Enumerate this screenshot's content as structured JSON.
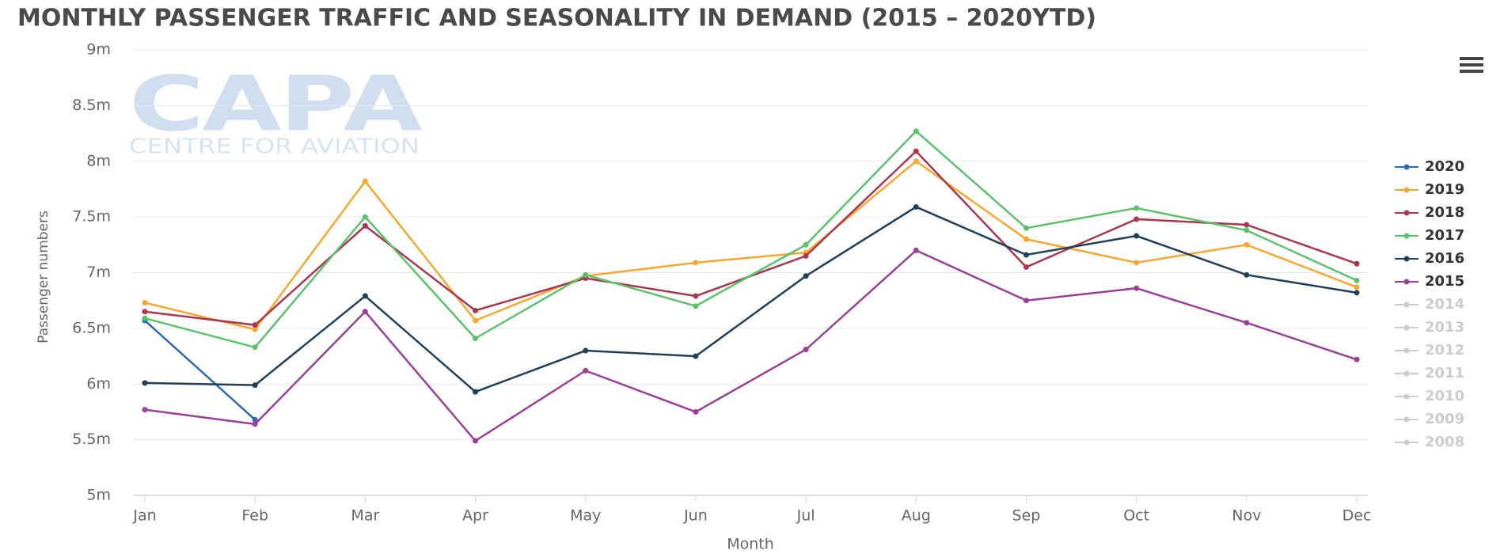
{
  "chart_data": {
    "type": "line",
    "title": "MONTHLY PASSENGER TRAFFIC AND SEASONALITY IN DEMAND (2015 – 2020YTD)",
    "watermark": {
      "logo": "CAPA",
      "subtitle": "CENTRE FOR AVIATION"
    },
    "x_label": "Month",
    "y_label": "Passenger numbers",
    "categories": [
      "Jan",
      "Feb",
      "Mar",
      "Apr",
      "May",
      "Jun",
      "Jul",
      "Aug",
      "Sep",
      "Oct",
      "Nov",
      "Dec"
    ],
    "ylim": [
      5,
      9
    ],
    "yticks": [
      {
        "value": 5,
        "label": "5m"
      },
      {
        "value": 5.5,
        "label": "5.5m"
      },
      {
        "value": 6,
        "label": "6m"
      },
      {
        "value": 6.5,
        "label": "6.5m"
      },
      {
        "value": 7,
        "label": "7m"
      },
      {
        "value": 7.5,
        "label": "7.5m"
      },
      {
        "value": 8,
        "label": "8m"
      },
      {
        "value": 8.5,
        "label": "8.5m"
      },
      {
        "value": 9,
        "label": "9m"
      }
    ],
    "grid": true,
    "legend": "right",
    "series": [
      {
        "name": "2020",
        "color": "#2a6ab8",
        "visible": true,
        "values": [
          6.57,
          5.68,
          null,
          null,
          null,
          null,
          null,
          null,
          null,
          null,
          null,
          null
        ]
      },
      {
        "name": "2019",
        "color": "#f7a731",
        "visible": true,
        "values": [
          6.73,
          6.49,
          7.82,
          6.57,
          6.97,
          7.09,
          7.18,
          8.0,
          7.3,
          7.09,
          7.25,
          6.87
        ]
      },
      {
        "name": "2018",
        "color": "#a8374f",
        "visible": true,
        "values": [
          6.65,
          6.53,
          7.42,
          6.66,
          6.95,
          6.79,
          7.15,
          8.09,
          7.05,
          7.48,
          7.43,
          7.08
        ]
      },
      {
        "name": "2017",
        "color": "#5cc26a",
        "visible": true,
        "values": [
          6.59,
          6.33,
          7.5,
          6.41,
          6.98,
          6.7,
          7.25,
          8.27,
          7.4,
          7.58,
          7.38,
          6.93
        ]
      },
      {
        "name": "2016",
        "color": "#1f3f5a",
        "visible": true,
        "values": [
          6.01,
          5.99,
          6.79,
          5.93,
          6.3,
          6.25,
          6.97,
          7.59,
          7.16,
          7.33,
          6.98,
          6.82
        ]
      },
      {
        "name": "2015",
        "color": "#9a3f98",
        "visible": true,
        "values": [
          5.77,
          5.64,
          6.65,
          5.49,
          6.12,
          5.75,
          6.31,
          7.2,
          6.75,
          6.86,
          6.55,
          6.22
        ]
      },
      {
        "name": "2014",
        "color": "#cccccc",
        "visible": false,
        "values": [
          null,
          null,
          null,
          null,
          null,
          null,
          null,
          null,
          null,
          null,
          null,
          null
        ]
      },
      {
        "name": "2013",
        "color": "#cccccc",
        "visible": false,
        "values": [
          null,
          null,
          null,
          null,
          null,
          null,
          null,
          null,
          null,
          null,
          null,
          null
        ]
      },
      {
        "name": "2012",
        "color": "#cccccc",
        "visible": false,
        "values": [
          null,
          null,
          null,
          null,
          null,
          null,
          null,
          null,
          null,
          null,
          null,
          null
        ]
      },
      {
        "name": "2011",
        "color": "#cccccc",
        "visible": false,
        "values": [
          null,
          null,
          null,
          null,
          null,
          null,
          null,
          null,
          null,
          null,
          null,
          null
        ]
      },
      {
        "name": "2010",
        "color": "#cccccc",
        "visible": false,
        "values": [
          null,
          null,
          null,
          null,
          null,
          null,
          null,
          null,
          null,
          null,
          null,
          null
        ]
      },
      {
        "name": "2009",
        "color": "#cccccc",
        "visible": false,
        "values": [
          null,
          null,
          null,
          null,
          null,
          null,
          null,
          null,
          null,
          null,
          null,
          null
        ]
      },
      {
        "name": "2008",
        "color": "#cccccc",
        "visible": false,
        "values": [
          null,
          null,
          null,
          null,
          null,
          null,
          null,
          null,
          null,
          null,
          null,
          null
        ]
      }
    ]
  }
}
